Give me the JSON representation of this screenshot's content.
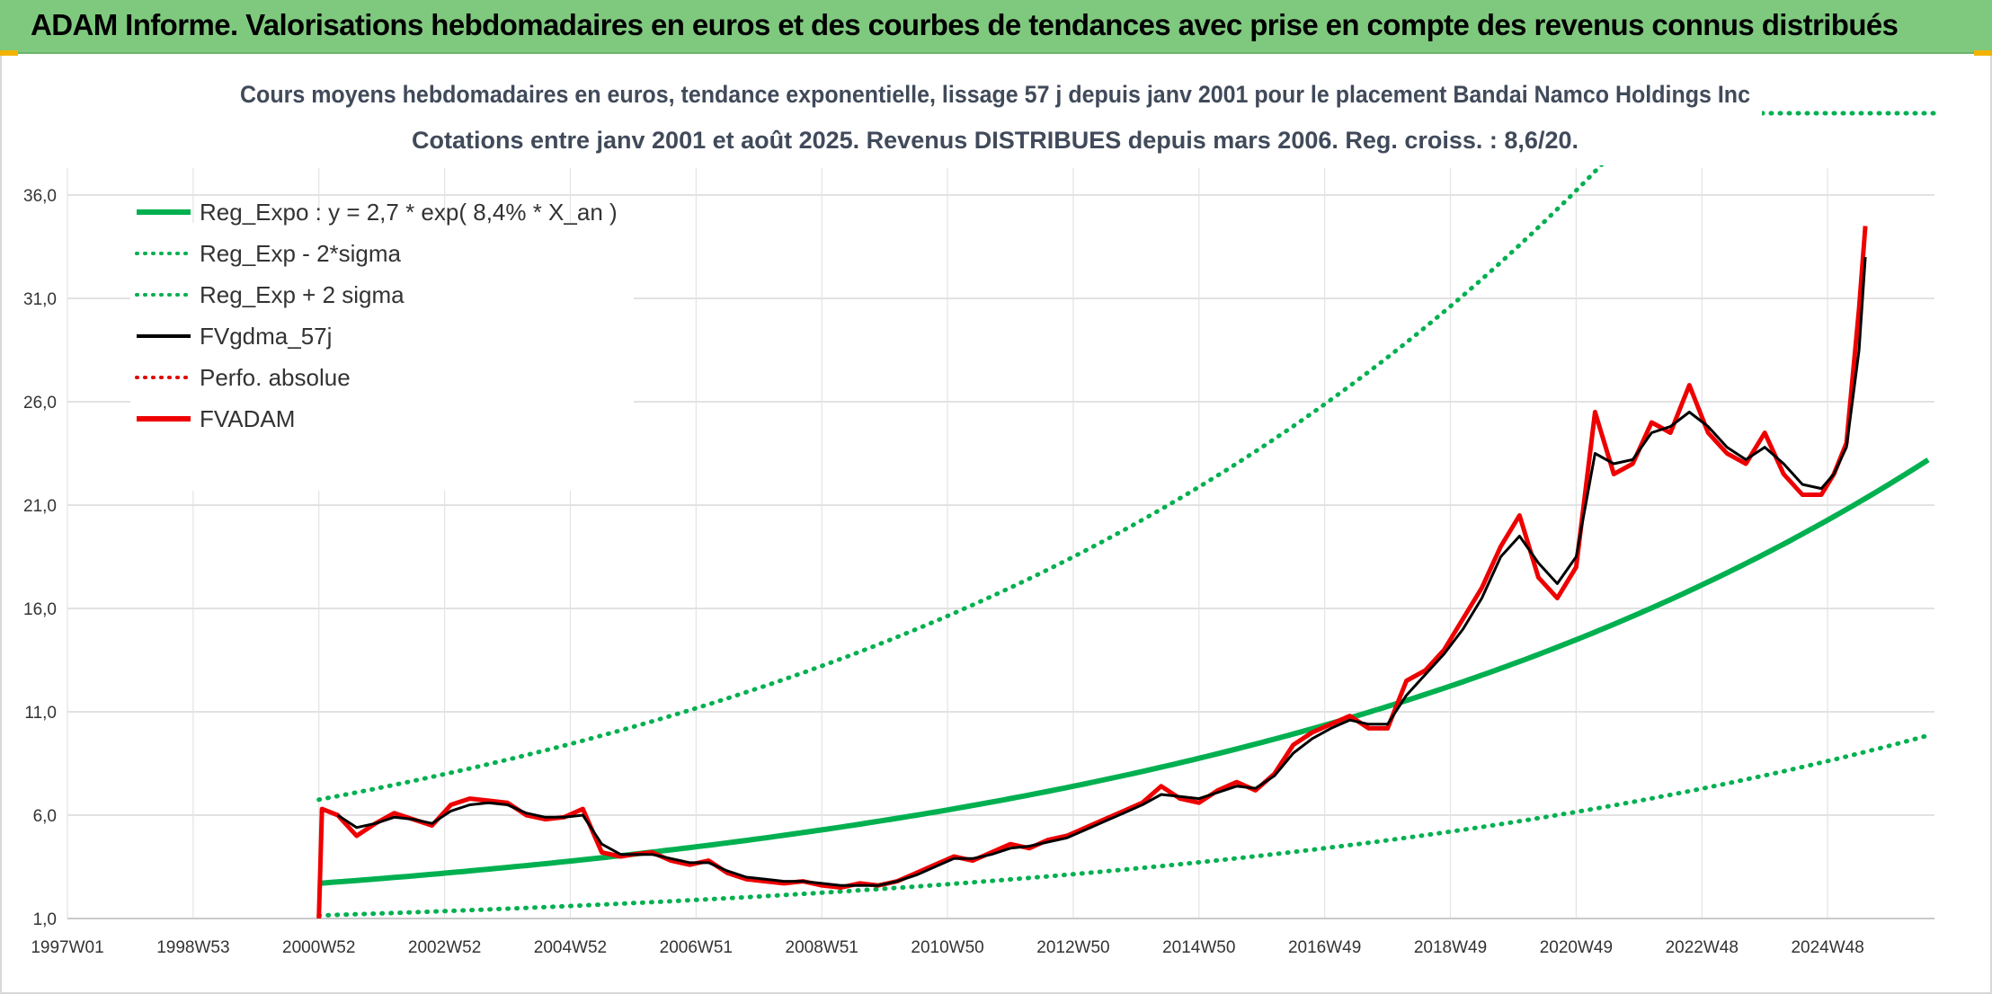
{
  "header": {
    "title": "ADAM Informe. Valorisations hebdomadaires en euros et des courbes de tendances avec prise en compte des revenus connus distribués"
  },
  "chart_data": {
    "type": "line",
    "title_lines": [
      "Cours moyens hebdomadaires en euros, tendance exponentielle, lissage 57 j depuis janv 2001 pour le placement Bandai Namco Holdings Inc",
      "Cotations entre janv 2001 et août 2025. Revenus DISTRIBUES depuis mars 2006. Reg. croiss. : 8,6/20."
    ],
    "x_ticks": [
      "1997W01",
      "1998W53",
      "2000W52",
      "2002W52",
      "2004W52",
      "2006W51",
      "2008W51",
      "2010W50",
      "2012W50",
      "2014W50",
      "2016W49",
      "2018W49",
      "2020W49",
      "2022W48",
      "2024W48"
    ],
    "x_tick_years": [
      1997.0,
      1999.0,
      2001.0,
      2003.0,
      2005.0,
      2007.0,
      2009.0,
      2011.0,
      2013.0,
      2015.0,
      2017.0,
      2019.0,
      2021.0,
      2023.0,
      2025.0
    ],
    "xlim": [
      1997.0,
      2026.7
    ],
    "y_ticks": [
      "1,0",
      "6,0",
      "11,0",
      "16,0",
      "21,0",
      "26,0",
      "31,0",
      "36,0"
    ],
    "ylim": [
      1,
      36
    ],
    "legend": [
      {
        "label": "Reg_Expo : y = 2,7 * exp( 8,4% *  X_an )",
        "color": "#00b050",
        "style": "solid-thick"
      },
      {
        "label": "Reg_Exp - 2*sigma",
        "color": "#00b050",
        "style": "dotted"
      },
      {
        "label": "Reg_Exp + 2 sigma",
        "color": "#00b050",
        "style": "dotted"
      },
      {
        "label": "FVgdma_57j",
        "color": "#000000",
        "style": "solid"
      },
      {
        "label": "Perfo. absolue",
        "color": "#e00000",
        "style": "dotted"
      },
      {
        "label": "FVADAM",
        "color": "#ee0000",
        "style": "solid-thick"
      }
    ],
    "regression": {
      "a": 2.7,
      "rate": 0.084,
      "start_year": 2001.0,
      "end_year": 2026.6
    },
    "sigma_band": {
      "upper_factor": 2.5,
      "lower_factor": 0.425
    },
    "series": [
      {
        "name": "FVADAM",
        "color": "#ee0000",
        "x": [
          2001.0,
          2001.05,
          2001.3,
          2001.6,
          2001.9,
          2002.2,
          2002.5,
          2002.8,
          2003.1,
          2003.4,
          2003.7,
          2004.0,
          2004.3,
          2004.6,
          2004.9,
          2005.2,
          2005.5,
          2005.8,
          2006.0,
          2006.3,
          2006.6,
          2006.9,
          2007.2,
          2007.5,
          2007.8,
          2008.1,
          2008.4,
          2008.7,
          2009.0,
          2009.3,
          2009.6,
          2009.9,
          2010.2,
          2010.5,
          2010.8,
          2011.1,
          2011.4,
          2011.7,
          2012.0,
          2012.3,
          2012.6,
          2012.9,
          2013.2,
          2013.5,
          2013.8,
          2014.1,
          2014.4,
          2014.7,
          2015.0,
          2015.3,
          2015.6,
          2015.9,
          2016.2,
          2016.5,
          2016.8,
          2017.1,
          2017.4,
          2017.7,
          2018.0,
          2018.3,
          2018.6,
          2018.9,
          2019.2,
          2019.5,
          2019.8,
          2020.1,
          2020.4,
          2020.7,
          2021.0,
          2021.3,
          2021.6,
          2021.9,
          2022.2,
          2022.5,
          2022.8,
          2023.1,
          2023.4,
          2023.7,
          2024.0,
          2024.3,
          2024.6,
          2024.9,
          2025.1,
          2025.3,
          2025.5,
          2025.6
        ],
        "values": [
          1.0,
          6.3,
          6.0,
          5.0,
          5.6,
          6.1,
          5.8,
          5.5,
          6.5,
          6.8,
          6.7,
          6.6,
          6.0,
          5.8,
          5.9,
          6.3,
          4.2,
          4.0,
          4.1,
          4.2,
          3.8,
          3.6,
          3.8,
          3.2,
          2.9,
          2.8,
          2.7,
          2.8,
          2.6,
          2.5,
          2.7,
          2.6,
          2.8,
          3.2,
          3.6,
          4.0,
          3.8,
          4.2,
          4.6,
          4.4,
          4.8,
          5.0,
          5.4,
          5.8,
          6.2,
          6.6,
          7.4,
          6.8,
          6.6,
          7.2,
          7.6,
          7.2,
          8.0,
          9.4,
          10.0,
          10.4,
          10.8,
          10.2,
          10.2,
          12.5,
          13.0,
          14.0,
          15.5,
          17.0,
          19.0,
          20.5,
          17.5,
          16.5,
          18.0,
          25.5,
          22.5,
          23.0,
          25.0,
          24.5,
          26.8,
          24.5,
          23.5,
          23.0,
          24.5,
          22.5,
          21.5,
          21.5,
          22.5,
          24.0,
          30.5,
          34.5
        ]
      },
      {
        "name": "FVgdma_57j",
        "color": "#000000",
        "x": [
          2001.3,
          2001.6,
          2001.9,
          2002.2,
          2002.5,
          2002.8,
          2003.1,
          2003.4,
          2003.7,
          2004.0,
          2004.3,
          2004.6,
          2004.9,
          2005.2,
          2005.5,
          2005.8,
          2006.0,
          2006.3,
          2006.6,
          2006.9,
          2007.2,
          2007.5,
          2007.8,
          2008.1,
          2008.4,
          2008.7,
          2009.0,
          2009.3,
          2009.6,
          2009.9,
          2010.2,
          2010.5,
          2010.8,
          2011.1,
          2011.4,
          2011.7,
          2012.0,
          2012.3,
          2012.6,
          2012.9,
          2013.2,
          2013.5,
          2013.8,
          2014.1,
          2014.4,
          2014.7,
          2015.0,
          2015.3,
          2015.6,
          2015.9,
          2016.2,
          2016.5,
          2016.8,
          2017.1,
          2017.4,
          2017.7,
          2018.0,
          2018.3,
          2018.6,
          2018.9,
          2019.2,
          2019.5,
          2019.8,
          2020.1,
          2020.4,
          2020.7,
          2021.0,
          2021.3,
          2021.6,
          2021.9,
          2022.2,
          2022.5,
          2022.8,
          2023.1,
          2023.4,
          2023.7,
          2024.0,
          2024.3,
          2024.6,
          2024.9,
          2025.1,
          2025.3,
          2025.5,
          2025.6
        ],
        "values": [
          6.0,
          5.4,
          5.6,
          5.9,
          5.8,
          5.6,
          6.2,
          6.5,
          6.6,
          6.5,
          6.1,
          5.9,
          5.9,
          6.0,
          4.6,
          4.1,
          4.1,
          4.1,
          3.9,
          3.7,
          3.7,
          3.3,
          3.0,
          2.9,
          2.8,
          2.8,
          2.7,
          2.6,
          2.6,
          2.6,
          2.8,
          3.1,
          3.5,
          3.9,
          3.9,
          4.1,
          4.4,
          4.5,
          4.7,
          4.9,
          5.3,
          5.7,
          6.1,
          6.5,
          7.0,
          6.9,
          6.8,
          7.1,
          7.4,
          7.3,
          7.9,
          9.0,
          9.7,
          10.2,
          10.6,
          10.4,
          10.4,
          11.8,
          12.8,
          13.8,
          15.0,
          16.5,
          18.5,
          19.5,
          18.2,
          17.2,
          18.5,
          23.5,
          23.0,
          23.2,
          24.5,
          24.8,
          25.5,
          24.8,
          23.8,
          23.2,
          23.8,
          23.0,
          22.0,
          21.8,
          22.5,
          23.8,
          28.5,
          33.0
        ]
      }
    ]
  }
}
